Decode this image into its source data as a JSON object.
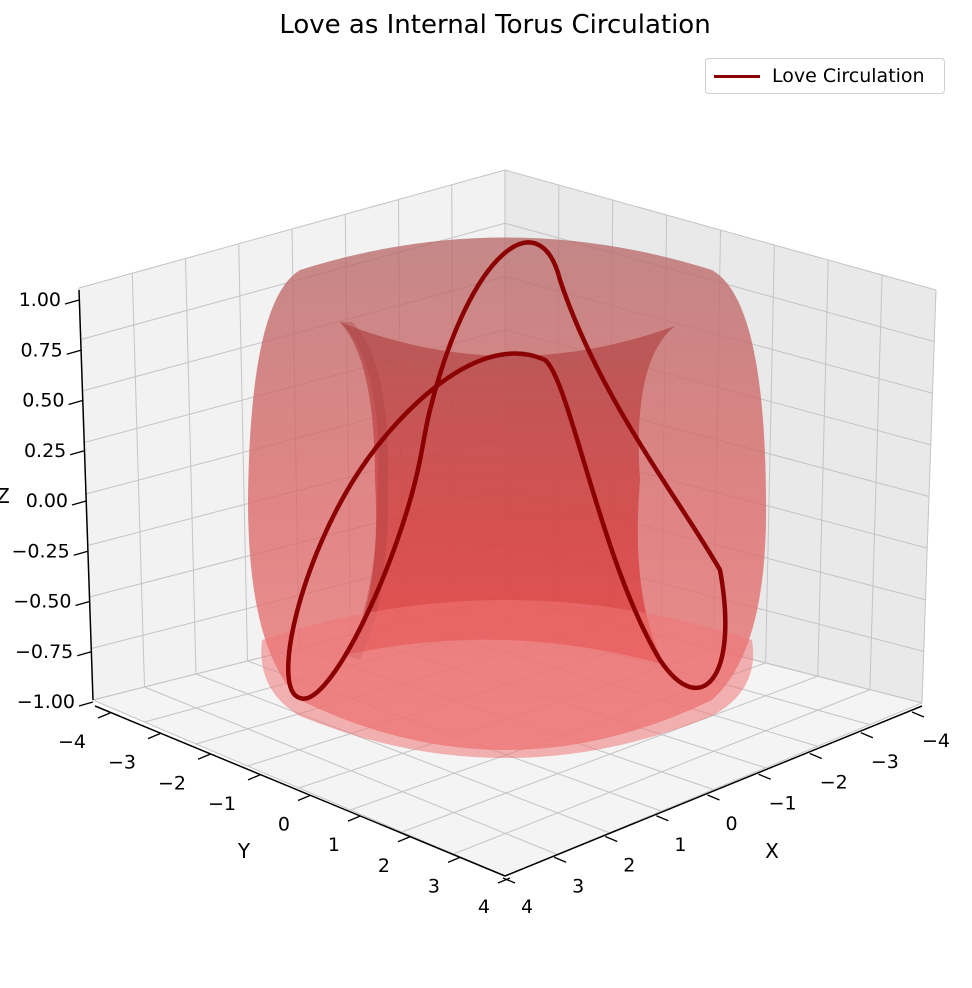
{
  "chart_data": {
    "type": "surface3d",
    "title": "Love as Internal Torus Circulation",
    "xlabel": "X",
    "ylabel": "Y",
    "zlabel": "Z",
    "xlim": [
      -4,
      4
    ],
    "ylim": [
      -4,
      4
    ],
    "zlim": [
      -1,
      1
    ],
    "x_ticks": [
      "−4",
      "−3",
      "−2",
      "−1",
      "0",
      "1",
      "2",
      "3",
      "4"
    ],
    "y_ticks": [
      "−4",
      "−3",
      "−2",
      "−1",
      "0",
      "1",
      "2",
      "3",
      "4"
    ],
    "z_ticks": [
      "1.00",
      "0.75",
      "0.50",
      "0.25",
      "0.00",
      "−0.25",
      "−0.50",
      "−0.75",
      "−1.00"
    ],
    "surface": {
      "shape": "torus",
      "major_radius": 3,
      "minor_radius": 1,
      "color": "#e06060"
    },
    "series": [
      {
        "name": "Love Circulation",
        "type": "line",
        "color": "#8b0000",
        "parametric": "torus knot x=(3+cos 3t)cos 2t, y=(3+cos 3t)sin 2t, z=sin 3t"
      }
    ],
    "legend_position": "top-right",
    "grid": true
  }
}
